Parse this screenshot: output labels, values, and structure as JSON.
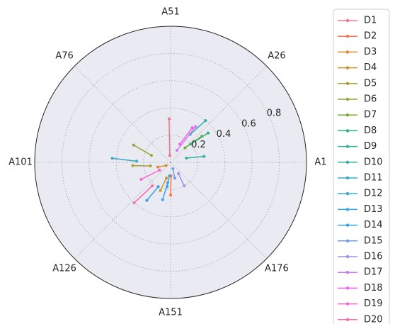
{
  "chart_data": {
    "type": "line",
    "projection": "polar",
    "title": "",
    "angle_tick_labels": [
      "A1",
      "A26",
      "A51",
      "A76",
      "A101",
      "A126",
      "A151",
      "A176"
    ],
    "angle_tick_degrees": [
      0,
      45,
      90,
      135,
      180,
      225,
      270,
      315
    ],
    "radial_ticks": [
      0.2,
      0.4,
      0.6,
      0.8
    ],
    "rlim": [
      0,
      1.0
    ],
    "grid": true,
    "legend": "right",
    "background": "#eaeaf2",
    "series": [
      {
        "name": "D1",
        "color": "#f77189",
        "points": [
          {
            "theta": 92,
            "r": 0.32
          },
          {
            "theta": 97,
            "r": 0.05
          }
        ]
      },
      {
        "name": "D2",
        "color": "#f7754f",
        "points": [
          {
            "theta": 270,
            "r": 0.24
          },
          {
            "theta": 272,
            "r": 0.1
          }
        ]
      },
      {
        "name": "D3",
        "color": "#dc8932",
        "points": [
          {
            "theta": 200,
            "r": 0.1
          },
          {
            "theta": 215,
            "r": 0.04
          }
        ]
      },
      {
        "name": "D4",
        "color": "#c39532",
        "points": [
          {
            "theta": 250,
            "r": 0.22
          },
          {
            "theta": 255,
            "r": 0.12
          }
        ]
      },
      {
        "name": "D5",
        "color": "#ae9d31",
        "points": [
          {
            "theta": 185,
            "r": 0.28
          },
          {
            "theta": 190,
            "r": 0.15
          }
        ]
      },
      {
        "name": "D6",
        "color": "#97a431",
        "points": [
          {
            "theta": 155,
            "r": 0.3
          },
          {
            "theta": 160,
            "r": 0.15
          }
        ]
      },
      {
        "name": "D7",
        "color": "#77ab31",
        "points": [
          {
            "theta": 40,
            "r": 0.3
          },
          {
            "theta": 45,
            "r": 0.15
          }
        ]
      },
      {
        "name": "D8",
        "color": "#33b07a",
        "points": [
          {
            "theta": 38,
            "r": 0.35
          },
          {
            "theta": 42,
            "r": 0.2
          }
        ]
      },
      {
        "name": "D9",
        "color": "#35ad9c",
        "points": [
          {
            "theta": 10,
            "r": 0.25
          },
          {
            "theta": 15,
            "r": 0.12
          }
        ]
      },
      {
        "name": "D10",
        "color": "#36ada4",
        "points": [
          {
            "theta": 50,
            "r": 0.4
          },
          {
            "theta": 55,
            "r": 0.25
          }
        ]
      },
      {
        "name": "D11",
        "color": "#38a9c5",
        "points": [
          {
            "theta": 176,
            "r": 0.43
          },
          {
            "theta": 178,
            "r": 0.25
          }
        ]
      },
      {
        "name": "D12",
        "color": "#39a7d0",
        "points": [
          {
            "theta": 262,
            "r": 0.18
          },
          {
            "theta": 265,
            "r": 0.1
          }
        ]
      },
      {
        "name": "D13",
        "color": "#3ba3ec",
        "points": [
          {
            "theta": 258,
            "r": 0.28
          },
          {
            "theta": 262,
            "r": 0.15
          }
        ]
      },
      {
        "name": "D14",
        "color": "#3b9fe6",
        "points": [
          {
            "theta": 238,
            "r": 0.33
          },
          {
            "theta": 243,
            "r": 0.2
          }
        ]
      },
      {
        "name": "D15",
        "color": "#6e9af4",
        "points": [
          {
            "theta": 285,
            "r": 0.12
          },
          {
            "theta": 290,
            "r": 0.05
          }
        ]
      },
      {
        "name": "D16",
        "color": "#a48cf4",
        "points": [
          {
            "theta": 300,
            "r": 0.2
          },
          {
            "theta": 305,
            "r": 0.1
          }
        ]
      },
      {
        "name": "D17",
        "color": "#cc7af4",
        "points": [
          {
            "theta": 55,
            "r": 0.32
          },
          {
            "theta": 62,
            "r": 0.1
          }
        ]
      },
      {
        "name": "D18",
        "color": "#f45ee9",
        "points": [
          {
            "theta": 58,
            "r": 0.3
          },
          {
            "theta": 63,
            "r": 0.15
          }
        ]
      },
      {
        "name": "D19",
        "color": "#f565cc",
        "points": [
          {
            "theta": 210,
            "r": 0.25
          },
          {
            "theta": 215,
            "r": 0.1
          }
        ]
      },
      {
        "name": "D20",
        "color": "#f66bad",
        "points": [
          {
            "theta": 228,
            "r": 0.4
          },
          {
            "theta": 232,
            "r": 0.22
          }
        ]
      }
    ]
  }
}
